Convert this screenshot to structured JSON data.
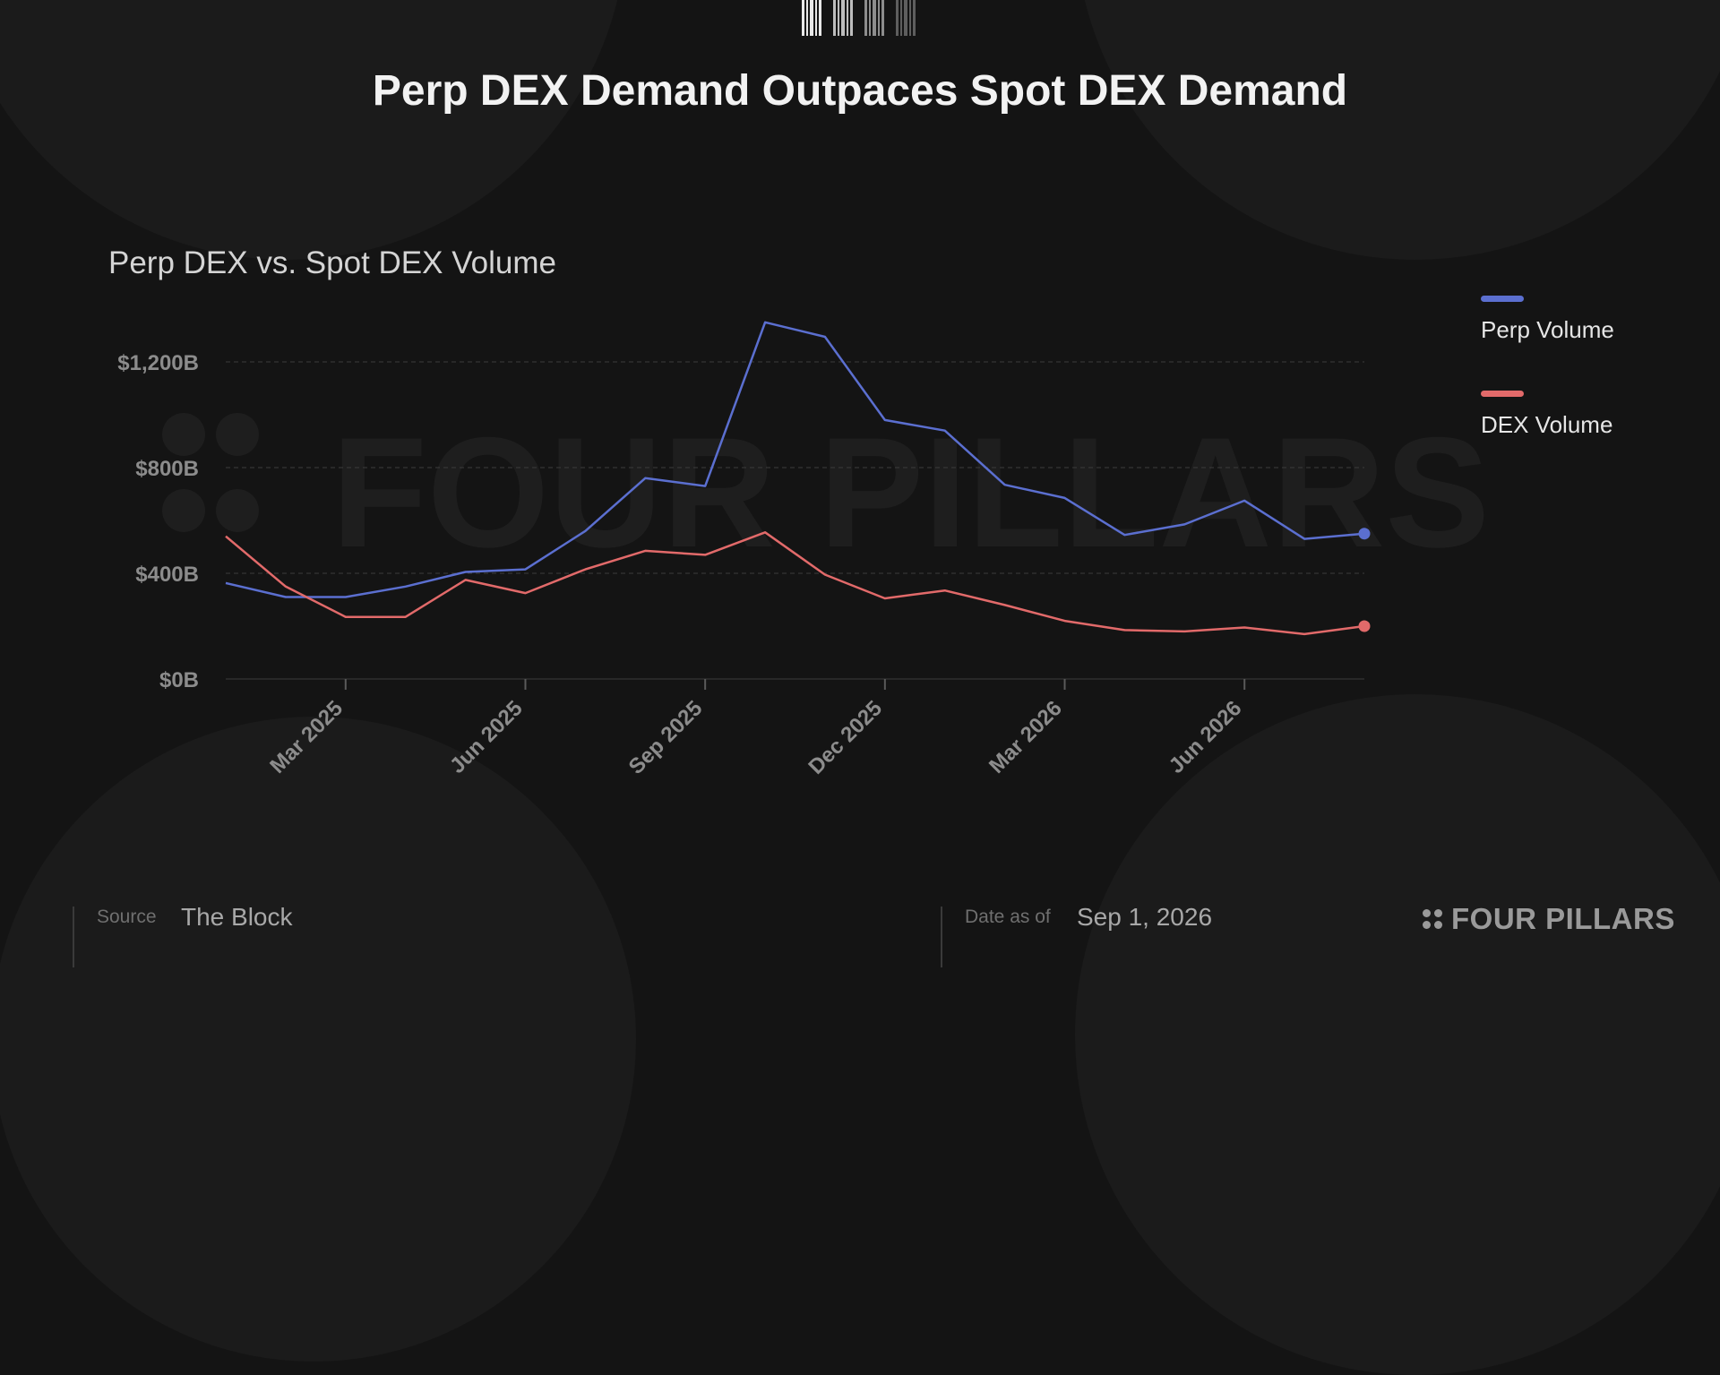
{
  "header": {
    "title": "Perp DEX Demand Outpaces Spot DEX Demand"
  },
  "watermark": {
    "text": "FOUR PILLARS"
  },
  "colors": {
    "background": "#141414",
    "perp": "#5b6fd0",
    "dex": "#e26a6a",
    "grid": "#3c3c3c",
    "tick_label": "#8c8c8c"
  },
  "chart_data": {
    "type": "line",
    "title": "Perp DEX vs. Spot DEX Volume",
    "xlabel": "",
    "ylabel": "",
    "ylim": [
      0,
      1400
    ],
    "y_unit": "$B",
    "y_ticks": [
      0,
      400,
      800,
      1200
    ],
    "y_tick_labels": [
      "$0B",
      "$400B",
      "$800B",
      "$1,200B"
    ],
    "x": [
      "Jan 2025",
      "Feb 2025",
      "Mar 2025",
      "Apr 2025",
      "May 2025",
      "Jun 2025",
      "Jul 2025",
      "Aug 2025",
      "Sep 2025",
      "Oct 2025",
      "Nov 2025",
      "Dec 2025",
      "Jan 2026",
      "Feb 2026",
      "Mar 2026",
      "Apr 2026",
      "May 2026",
      "Jun 2026",
      "Jul 2026",
      "Aug 2026"
    ],
    "x_tick_labels": [
      {
        "at": "Mar 2025",
        "label": "Mar 2025"
      },
      {
        "at": "Jun 2025",
        "label": "Jun 2025"
      },
      {
        "at": "Sep 2025",
        "label": "Sep 2025"
      },
      {
        "at": "Dec 2025",
        "label": "Dec 2025"
      },
      {
        "at": "Mar 2026",
        "label": "Mar 2026"
      },
      {
        "at": "Jun 2026",
        "label": "Jun 2026"
      }
    ],
    "series": [
      {
        "name": "Perp Volume",
        "color": "#5b6fd0",
        "values": [
          363,
          310,
          310,
          350,
          405,
          415,
          560,
          760,
          730,
          1350,
          1295,
          980,
          940,
          735,
          685,
          545,
          585,
          675,
          530,
          550
        ]
      },
      {
        "name": "DEX Volume",
        "color": "#e26a6a",
        "values": [
          540,
          350,
          235,
          235,
          375,
          325,
          415,
          485,
          470,
          555,
          395,
          305,
          335,
          280,
          220,
          185,
          180,
          195,
          170,
          200
        ]
      }
    ],
    "legend_position": "right",
    "grid": true,
    "end_markers": true
  },
  "footer": {
    "source_key": "Source",
    "source_value": "The Block",
    "date_key": "Date as of",
    "date_value": "Sep 1, 2026",
    "brand": "FOUR PILLARS"
  }
}
